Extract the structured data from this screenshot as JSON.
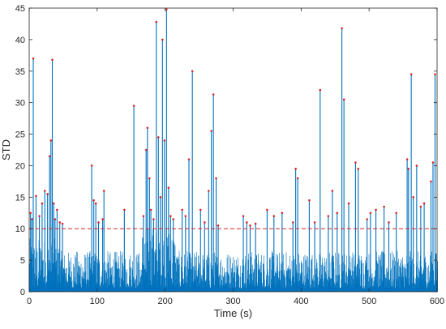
{
  "chart_data": {
    "type": "line",
    "xlabel": "Time (s)",
    "ylabel": "STD",
    "xlim": [
      0,
      600
    ],
    "ylim": [
      0,
      45
    ],
    "x_ticks": [
      0,
      100,
      200,
      300,
      400,
      500,
      600
    ],
    "y_ticks": [
      0,
      5,
      10,
      15,
      20,
      25,
      30,
      35,
      40,
      45
    ],
    "grid": false,
    "box": true,
    "threshold": {
      "value": 10,
      "style": "dashed",
      "color": "#d62728"
    },
    "series_color": "#0072bd",
    "peak_marker_color": "#d62728",
    "peaks": [
      {
        "x": 2,
        "y": 12.5
      },
      {
        "x": 4,
        "y": 11.5
      },
      {
        "x": 6,
        "y": 37.0
      },
      {
        "x": 10,
        "y": 15.2
      },
      {
        "x": 15,
        "y": 12.0
      },
      {
        "x": 19,
        "y": 14.0
      },
      {
        "x": 23,
        "y": 16.0
      },
      {
        "x": 27,
        "y": 15.5
      },
      {
        "x": 30,
        "y": 21.5
      },
      {
        "x": 32,
        "y": 24.0
      },
      {
        "x": 34,
        "y": 36.8
      },
      {
        "x": 36,
        "y": 14.0
      },
      {
        "x": 38,
        "y": 11.5
      },
      {
        "x": 41,
        "y": 13.0
      },
      {
        "x": 45,
        "y": 11.0
      },
      {
        "x": 49,
        "y": 10.8
      },
      {
        "x": 92,
        "y": 20.0
      },
      {
        "x": 95,
        "y": 14.5
      },
      {
        "x": 98,
        "y": 14.0
      },
      {
        "x": 102,
        "y": 11.0
      },
      {
        "x": 108,
        "y": 11.5
      },
      {
        "x": 110,
        "y": 16.0
      },
      {
        "x": 140,
        "y": 13.0
      },
      {
        "x": 154,
        "y": 29.5
      },
      {
        "x": 168,
        "y": 12.0
      },
      {
        "x": 172,
        "y": 22.5
      },
      {
        "x": 174,
        "y": 26.0
      },
      {
        "x": 177,
        "y": 18.0
      },
      {
        "x": 179,
        "y": 13.0
      },
      {
        "x": 183,
        "y": 11.5
      },
      {
        "x": 187,
        "y": 42.8
      },
      {
        "x": 190,
        "y": 24.5
      },
      {
        "x": 193,
        "y": 15.0
      },
      {
        "x": 196,
        "y": 40.0
      },
      {
        "x": 199,
        "y": 24.0
      },
      {
        "x": 202,
        "y": 44.8
      },
      {
        "x": 205,
        "y": 16.5
      },
      {
        "x": 208,
        "y": 12.0
      },
      {
        "x": 212,
        "y": 11.5
      },
      {
        "x": 225,
        "y": 13.0
      },
      {
        "x": 230,
        "y": 12.0
      },
      {
        "x": 235,
        "y": 21.0
      },
      {
        "x": 240,
        "y": 35.0
      },
      {
        "x": 252,
        "y": 13.0
      },
      {
        "x": 258,
        "y": 11.0
      },
      {
        "x": 264,
        "y": 16.0
      },
      {
        "x": 268,
        "y": 25.5
      },
      {
        "x": 271,
        "y": 31.3
      },
      {
        "x": 275,
        "y": 18.0
      },
      {
        "x": 278,
        "y": 10.5
      },
      {
        "x": 315,
        "y": 12.0
      },
      {
        "x": 320,
        "y": 11.0
      },
      {
        "x": 325,
        "y": 10.5
      },
      {
        "x": 333,
        "y": 10.8
      },
      {
        "x": 350,
        "y": 13.0
      },
      {
        "x": 360,
        "y": 12.0
      },
      {
        "x": 372,
        "y": 12.5
      },
      {
        "x": 388,
        "y": 11.0
      },
      {
        "x": 392,
        "y": 19.5
      },
      {
        "x": 395,
        "y": 18.0
      },
      {
        "x": 412,
        "y": 14.5
      },
      {
        "x": 420,
        "y": 11.0
      },
      {
        "x": 428,
        "y": 32.0
      },
      {
        "x": 440,
        "y": 12.0
      },
      {
        "x": 446,
        "y": 16.0
      },
      {
        "x": 453,
        "y": 12.5
      },
      {
        "x": 460,
        "y": 41.8
      },
      {
        "x": 463,
        "y": 30.5
      },
      {
        "x": 470,
        "y": 14.0
      },
      {
        "x": 480,
        "y": 20.5
      },
      {
        "x": 484,
        "y": 19.5
      },
      {
        "x": 497,
        "y": 11.5
      },
      {
        "x": 502,
        "y": 12.5
      },
      {
        "x": 510,
        "y": 13.0
      },
      {
        "x": 522,
        "y": 13.5
      },
      {
        "x": 529,
        "y": 11.0
      },
      {
        "x": 540,
        "y": 12.5
      },
      {
        "x": 556,
        "y": 21.0
      },
      {
        "x": 558,
        "y": 19.5
      },
      {
        "x": 562,
        "y": 34.5
      },
      {
        "x": 565,
        "y": 15.0
      },
      {
        "x": 570,
        "y": 20.0
      },
      {
        "x": 576,
        "y": 13.5
      },
      {
        "x": 581,
        "y": 14.0
      },
      {
        "x": 591,
        "y": 17.5
      },
      {
        "x": 594,
        "y": 20.5
      },
      {
        "x": 597,
        "y": 34.5
      }
    ],
    "background_noise": {
      "baseline_min": 0.5,
      "typical_max": 6,
      "active_regions": [
        {
          "x_start": 165,
          "x_end": 215,
          "typical_max": 10
        },
        {
          "x_start": 0,
          "x_end": 45,
          "typical_max": 8
        }
      ]
    }
  }
}
